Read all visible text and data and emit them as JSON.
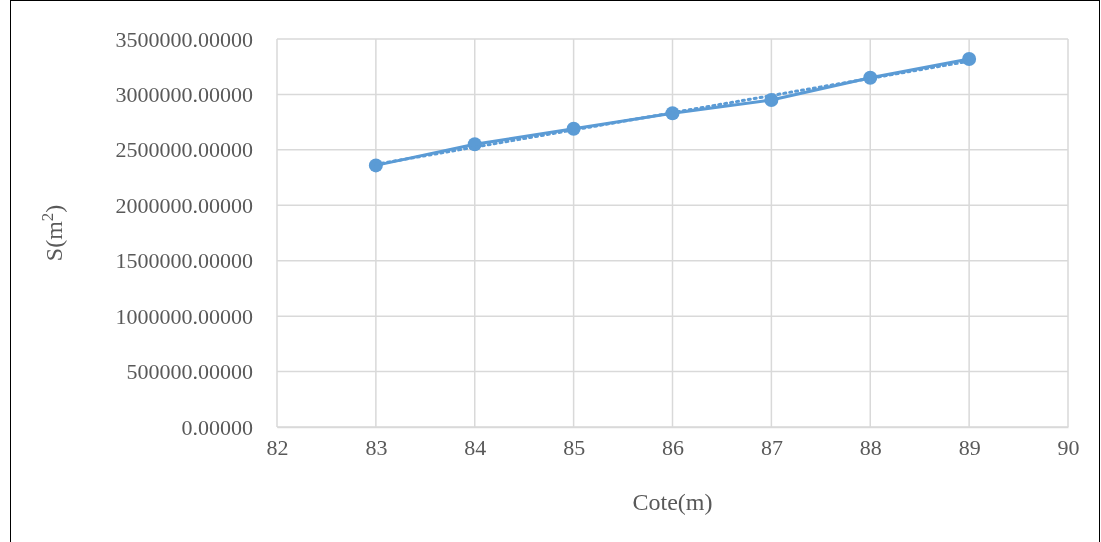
{
  "chart_data": {
    "type": "line",
    "xlabel": "Cote(m)",
    "ylabel": "S(m$^{2}$)",
    "xlim": [
      82,
      90
    ],
    "xticks": [
      82,
      83,
      84,
      85,
      86,
      87,
      88,
      89,
      90
    ],
    "ylim": [
      0,
      3500000
    ],
    "yticks": [
      {
        "value": 0,
        "label": "0.00000"
      },
      {
        "value": 500000,
        "label": "500000.00000"
      },
      {
        "value": 1000000,
        "label": "1000000.00000"
      },
      {
        "value": 1500000,
        "label": "1500000.00000"
      },
      {
        "value": 2000000,
        "label": "2000000.00000"
      },
      {
        "value": 2500000,
        "label": "2500000.00000"
      },
      {
        "value": 3000000,
        "label": "3000000.00000"
      },
      {
        "value": 3500000,
        "label": "3500000.00000"
      }
    ],
    "grid": true,
    "series": [
      {
        "color": "#5b9bd5",
        "x": [
          83,
          84,
          85,
          86,
          87,
          88,
          89
        ],
        "values": [
          2360000,
          2550000,
          2690000,
          2830000,
          2950000,
          3150000,
          3320000
        ],
        "marker": "circle",
        "line_style": "solid"
      },
      {
        "color": "#5b9bd5",
        "x": [
          83,
          89
        ],
        "values": [
          2370000,
          3300000
        ],
        "marker": "none",
        "line_style": "dotted"
      }
    ]
  }
}
